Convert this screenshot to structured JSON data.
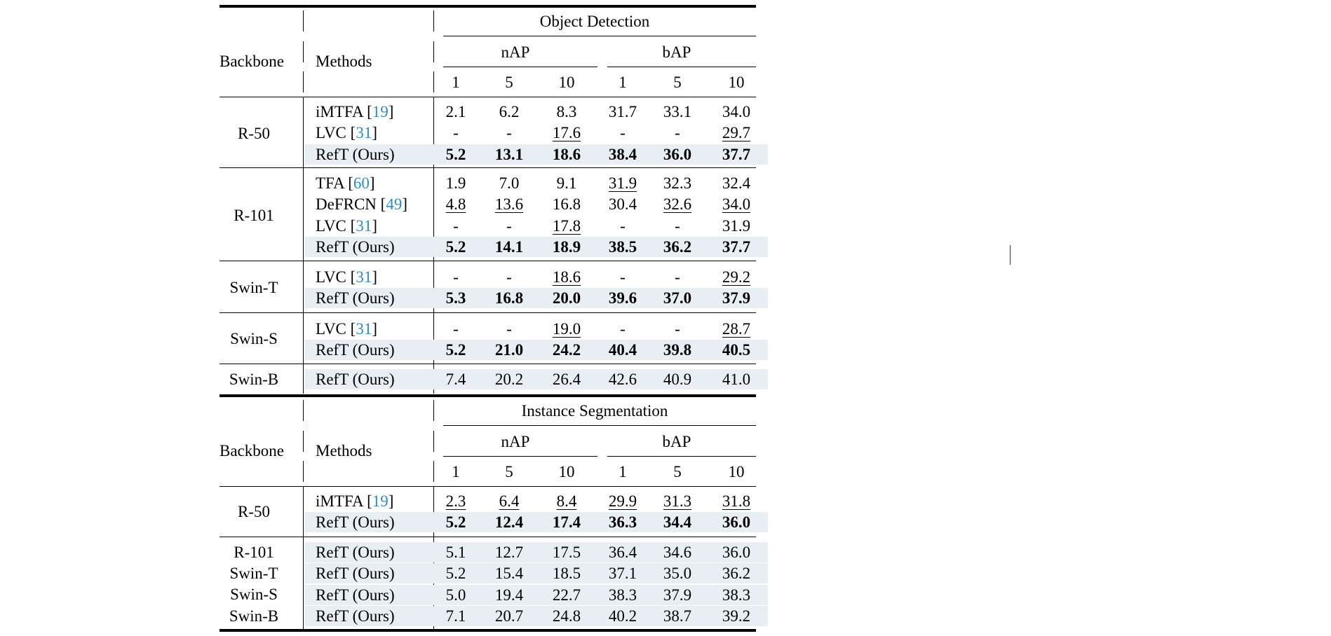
{
  "colors": {
    "highlight_row": "#e9eef5",
    "citation": "#2a8ccc",
    "rule": "#000000"
  },
  "top_table": {
    "section_title": "Object Detection",
    "backbone_header": "Backbone",
    "methods_header": "Methods",
    "metric_groups": [
      "nAP",
      "bAP"
    ],
    "shots": [
      "1",
      "5",
      "10",
      "1",
      "5",
      "10"
    ],
    "rows": [
      {
        "backbone": "R-50",
        "method": "iMTFA ",
        "cite": "19",
        "values": [
          "2.1",
          "6.2",
          "8.3",
          "31.7",
          "33.1",
          "34.0"
        ],
        "bold": [
          0,
          0,
          0,
          0,
          0,
          0
        ],
        "underline": [
          0,
          0,
          0,
          0,
          0,
          0
        ],
        "highlight": false
      },
      {
        "backbone": "",
        "method": "LVC ",
        "cite": "31",
        "values": [
          "-",
          "-",
          "17.6",
          "-",
          "-",
          "29.7"
        ],
        "bold": [
          0,
          0,
          0,
          0,
          0,
          0
        ],
        "underline": [
          0,
          0,
          1,
          0,
          0,
          1
        ],
        "highlight": false
      },
      {
        "backbone": "",
        "method": "RefT (Ours)",
        "cite": "",
        "values": [
          "5.2",
          "13.1",
          "18.6",
          "38.4",
          "36.0",
          "37.7"
        ],
        "bold": [
          1,
          1,
          1,
          1,
          1,
          1
        ],
        "underline": [
          0,
          0,
          0,
          0,
          0,
          0
        ],
        "highlight": true
      },
      {
        "backbone": "R-101",
        "method": "TFA ",
        "cite": "60",
        "values": [
          "1.9",
          "7.0",
          "9.1",
          "31.9",
          "32.3",
          "32.4"
        ],
        "bold": [
          0,
          0,
          0,
          0,
          0,
          0
        ],
        "underline": [
          0,
          0,
          0,
          1,
          0,
          0
        ],
        "highlight": false
      },
      {
        "backbone": "",
        "method": "DeFRCN ",
        "cite": "49",
        "values": [
          "4.8",
          "13.6",
          "16.8",
          "30.4",
          "32.6",
          "34.0"
        ],
        "bold": [
          0,
          0,
          0,
          0,
          0,
          0
        ],
        "underline": [
          1,
          1,
          0,
          0,
          1,
          1
        ],
        "highlight": false
      },
      {
        "backbone": "",
        "method": "LVC ",
        "cite": "31",
        "values": [
          "-",
          "-",
          "17.8",
          "-",
          "-",
          "31.9"
        ],
        "bold": [
          0,
          0,
          0,
          0,
          0,
          0
        ],
        "underline": [
          0,
          0,
          1,
          0,
          0,
          0
        ],
        "highlight": false
      },
      {
        "backbone": "",
        "method": "RefT (Ours)",
        "cite": "",
        "values": [
          "5.2",
          "14.1",
          "18.9",
          "38.5",
          "36.2",
          "37.7"
        ],
        "bold": [
          1,
          1,
          1,
          1,
          1,
          1
        ],
        "underline": [
          0,
          0,
          0,
          0,
          0,
          0
        ],
        "highlight": true
      },
      {
        "backbone": "Swin-T",
        "method": "LVC ",
        "cite": "31",
        "values": [
          "-",
          "-",
          "18.6",
          "-",
          "-",
          "29.2"
        ],
        "bold": [
          0,
          0,
          0,
          0,
          0,
          0
        ],
        "underline": [
          0,
          0,
          1,
          0,
          0,
          1
        ],
        "highlight": false
      },
      {
        "backbone": "",
        "method": "RefT (Ours)",
        "cite": "",
        "values": [
          "5.3",
          "16.8",
          "20.0",
          "39.6",
          "37.0",
          "37.9"
        ],
        "bold": [
          1,
          1,
          1,
          1,
          1,
          1
        ],
        "underline": [
          0,
          0,
          0,
          0,
          0,
          0
        ],
        "highlight": true
      },
      {
        "backbone": "Swin-S",
        "method": "LVC ",
        "cite": "31",
        "values": [
          "-",
          "-",
          "19.0",
          "-",
          "-",
          "28.7"
        ],
        "bold": [
          0,
          0,
          0,
          0,
          0,
          0
        ],
        "underline": [
          0,
          0,
          1,
          0,
          0,
          1
        ],
        "highlight": false
      },
      {
        "backbone": "",
        "method": "RefT (Ours)",
        "cite": "",
        "values": [
          "5.2",
          "21.0",
          "24.2",
          "40.4",
          "39.8",
          "40.5"
        ],
        "bold": [
          1,
          1,
          1,
          1,
          1,
          1
        ],
        "underline": [
          0,
          0,
          0,
          0,
          0,
          0
        ],
        "highlight": true
      },
      {
        "backbone": "Swin-B",
        "method": "RefT (Ours)",
        "cite": "",
        "values": [
          "7.4",
          "20.2",
          "26.4",
          "42.6",
          "40.9",
          "41.0"
        ],
        "bold": [
          0,
          0,
          0,
          0,
          0,
          0
        ],
        "underline": [
          0,
          0,
          0,
          0,
          0,
          0
        ],
        "highlight": true
      }
    ]
  },
  "bottom_table": {
    "section_title": "Instance Segmentation",
    "backbone_header": "Backbone",
    "methods_header": "Methods",
    "metric_groups": [
      "nAP",
      "bAP"
    ],
    "shots": [
      "1",
      "5",
      "10",
      "1",
      "5",
      "10"
    ],
    "rows": [
      {
        "backbone": "R-50",
        "method": "iMTFA ",
        "cite": "19",
        "values": [
          "2.3",
          "6.4",
          "8.4",
          "29.9",
          "31.3",
          "31.8"
        ],
        "bold": [
          0,
          0,
          0,
          0,
          0,
          0
        ],
        "underline": [
          1,
          1,
          1,
          1,
          1,
          1
        ],
        "highlight": false
      },
      {
        "backbone": "",
        "method": "RefT (Ours)",
        "cite": "",
        "values": [
          "5.2",
          "12.4",
          "17.4",
          "36.3",
          "34.4",
          "36.0"
        ],
        "bold": [
          1,
          1,
          1,
          1,
          1,
          1
        ],
        "underline": [
          0,
          0,
          0,
          0,
          0,
          0
        ],
        "highlight": true
      },
      {
        "backbone": "R-101",
        "method": "RefT (Ours)",
        "cite": "",
        "values": [
          "5.1",
          "12.7",
          "17.5",
          "36.4",
          "34.6",
          "36.0"
        ],
        "bold": [
          0,
          0,
          0,
          0,
          0,
          0
        ],
        "underline": [
          0,
          0,
          0,
          0,
          0,
          0
        ],
        "highlight": true
      },
      {
        "backbone": "Swin-T",
        "method": "RefT (Ours)",
        "cite": "",
        "values": [
          "5.2",
          "15.4",
          "18.5",
          "37.1",
          "35.0",
          "36.2"
        ],
        "bold": [
          0,
          0,
          0,
          0,
          0,
          0
        ],
        "underline": [
          0,
          0,
          0,
          0,
          0,
          0
        ],
        "highlight": true
      },
      {
        "backbone": "Swin-S",
        "method": "RefT (Ours)",
        "cite": "",
        "values": [
          "5.0",
          "19.4",
          "22.7",
          "38.3",
          "37.9",
          "38.3"
        ],
        "bold": [
          0,
          0,
          0,
          0,
          0,
          0
        ],
        "underline": [
          0,
          0,
          0,
          0,
          0,
          0
        ],
        "highlight": true
      },
      {
        "backbone": "Swin-B",
        "method": "RefT (Ours)",
        "cite": "",
        "values": [
          "7.1",
          "20.7",
          "24.8",
          "40.2",
          "38.7",
          "39.2"
        ],
        "bold": [
          0,
          0,
          0,
          0,
          0,
          0
        ],
        "underline": [
          0,
          0,
          0,
          0,
          0,
          0
        ],
        "highlight": true
      }
    ]
  }
}
